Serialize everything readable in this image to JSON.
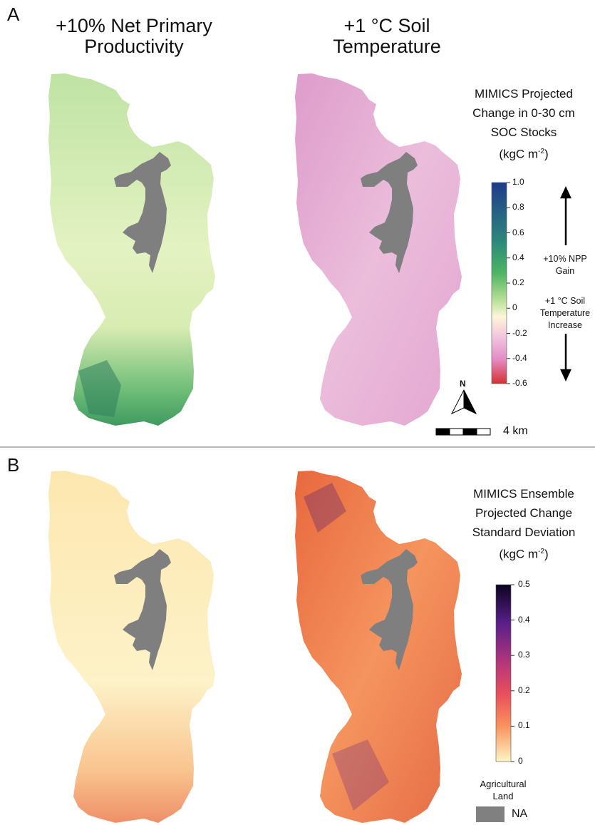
{
  "panel_a": {
    "letter": "A",
    "map_left_title": [
      "+10% Net Primary",
      "Productivity"
    ],
    "map_right_title": [
      "+1 °C Soil",
      "Temperature"
    ],
    "legend_title": [
      "MIMICS Projected",
      "Change in 0-30 cm",
      "SOC Stocks"
    ],
    "legend_unit_main": "(kgC m",
    "legend_unit_sup": "-2",
    "legend_unit_end": ")",
    "ticks": [
      "1.0",
      "0.8",
      "0.6",
      "0.4",
      "0.2",
      "0",
      "-0.2",
      "-0.4",
      "-0.6"
    ],
    "colors": {
      "max": "#1f3a8a",
      "mid_green": "#4db562",
      "zero": "#fdf6d8",
      "neg": "#e48bc4",
      "min": "#d63030"
    },
    "gain_note": [
      "+10% NPP",
      "Gain"
    ],
    "loss_note": [
      "+1 °C Soil",
      "Temperature",
      "Increase"
    ],
    "north_label": "N",
    "scale_label": "4 km"
  },
  "panel_b": {
    "letter": "B",
    "legend_title": [
      "MIMICS Ensemble",
      "Projected Change",
      "Standard Deviation"
    ],
    "legend_unit_main": "(kgC m",
    "legend_unit_sup": "-2",
    "legend_unit_end": ")",
    "ticks": [
      "0.5",
      "0.4",
      "0.3",
      "0.2",
      "0.1",
      "0"
    ],
    "colors": {
      "max": "#0b0320",
      "purple": "#5a2089",
      "red": "#d3435b",
      "orange": "#f9935e",
      "min": "#fdf5c4"
    },
    "na_title": [
      "Agricultural",
      "Land"
    ],
    "na_label": "NA",
    "na_color": "#808080"
  }
}
